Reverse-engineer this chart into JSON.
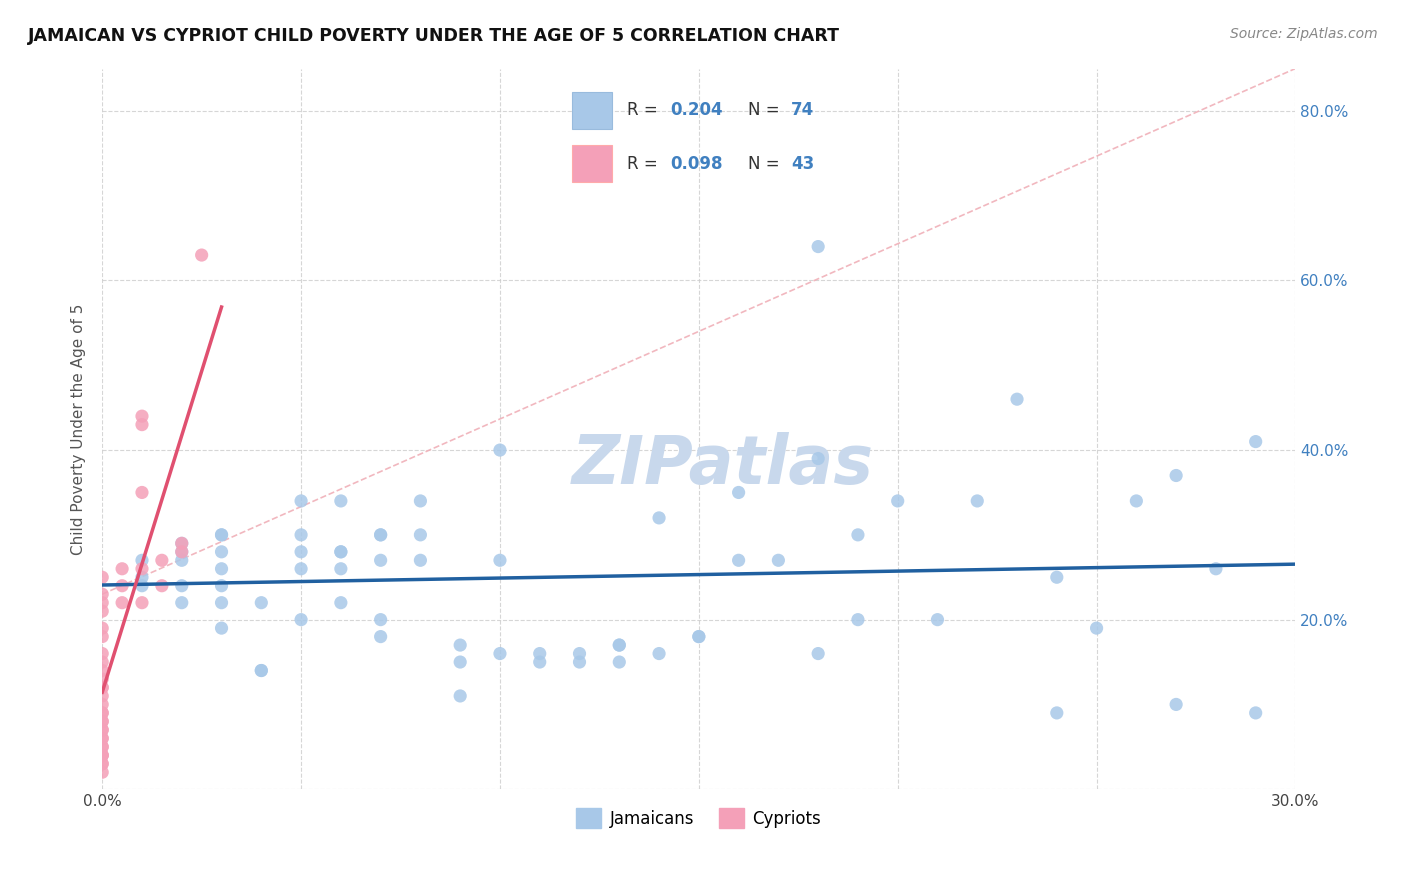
{
  "title": "JAMAICAN VS CYPRIOT CHILD POVERTY UNDER THE AGE OF 5 CORRELATION CHART",
  "source": "Source: ZipAtlas.com",
  "ylabel": "Child Poverty Under the Age of 5",
  "xlim": [
    0.0,
    0.3
  ],
  "ylim": [
    0.0,
    0.85
  ],
  "xticks": [
    0.0,
    0.05,
    0.1,
    0.15,
    0.2,
    0.25,
    0.3
  ],
  "xtick_labels": [
    "0.0%",
    "",
    "",
    "",
    "",
    "",
    "30.0%"
  ],
  "yticks": [
    0.0,
    0.2,
    0.4,
    0.6,
    0.8
  ],
  "ytick_labels_right": [
    "",
    "20.0%",
    "40.0%",
    "60.0%",
    "80.0%"
  ],
  "blue_R": "0.204",
  "blue_N": "74",
  "pink_R": "0.098",
  "pink_N": "43",
  "blue_color": "#A8C8E8",
  "pink_color": "#F4A0B8",
  "blue_line_color": "#2060A0",
  "pink_line_color": "#E05070",
  "ref_line_color": "#F0B0B8",
  "tick_label_color": "#4080C0",
  "watermark": "ZIPatlas",
  "watermark_color": "#C8D8EC",
  "legend_label_blue": "Jamaicans",
  "legend_label_pink": "Cypriots",
  "blue_x": [
    0.01,
    0.01,
    0.01,
    0.02,
    0.02,
    0.02,
    0.02,
    0.02,
    0.03,
    0.03,
    0.03,
    0.03,
    0.03,
    0.03,
    0.03,
    0.04,
    0.04,
    0.04,
    0.05,
    0.05,
    0.05,
    0.05,
    0.05,
    0.06,
    0.06,
    0.06,
    0.06,
    0.06,
    0.07,
    0.07,
    0.07,
    0.07,
    0.07,
    0.08,
    0.08,
    0.08,
    0.09,
    0.09,
    0.09,
    0.1,
    0.1,
    0.1,
    0.11,
    0.11,
    0.12,
    0.12,
    0.13,
    0.13,
    0.13,
    0.14,
    0.14,
    0.15,
    0.15,
    0.16,
    0.16,
    0.17,
    0.18,
    0.18,
    0.18,
    0.19,
    0.19,
    0.2,
    0.21,
    0.22,
    0.23,
    0.24,
    0.24,
    0.25,
    0.26,
    0.27,
    0.27,
    0.28,
    0.29,
    0.29
  ],
  "blue_y": [
    0.25,
    0.27,
    0.24,
    0.29,
    0.28,
    0.24,
    0.22,
    0.27,
    0.3,
    0.28,
    0.26,
    0.22,
    0.19,
    0.3,
    0.24,
    0.14,
    0.14,
    0.22,
    0.26,
    0.2,
    0.3,
    0.34,
    0.28,
    0.26,
    0.28,
    0.22,
    0.34,
    0.28,
    0.27,
    0.3,
    0.3,
    0.18,
    0.2,
    0.27,
    0.3,
    0.34,
    0.11,
    0.15,
    0.17,
    0.4,
    0.27,
    0.16,
    0.15,
    0.16,
    0.16,
    0.15,
    0.17,
    0.15,
    0.17,
    0.16,
    0.32,
    0.18,
    0.18,
    0.27,
    0.35,
    0.27,
    0.64,
    0.39,
    0.16,
    0.3,
    0.2,
    0.34,
    0.2,
    0.34,
    0.46,
    0.09,
    0.25,
    0.19,
    0.34,
    0.1,
    0.37,
    0.26,
    0.09,
    0.41
  ],
  "pink_x": [
    0.0,
    0.0,
    0.0,
    0.0,
    0.0,
    0.0,
    0.0,
    0.0,
    0.0,
    0.0,
    0.0,
    0.0,
    0.0,
    0.0,
    0.0,
    0.0,
    0.0,
    0.0,
    0.0,
    0.0,
    0.0,
    0.0,
    0.0,
    0.0,
    0.0,
    0.0,
    0.0,
    0.0,
    0.0,
    0.0,
    0.005,
    0.005,
    0.005,
    0.01,
    0.01,
    0.01,
    0.01,
    0.01,
    0.015,
    0.015,
    0.02,
    0.02,
    0.025
  ],
  "pink_y": [
    0.25,
    0.23,
    0.22,
    0.21,
    0.19,
    0.18,
    0.16,
    0.15,
    0.14,
    0.13,
    0.12,
    0.11,
    0.1,
    0.09,
    0.08,
    0.07,
    0.06,
    0.05,
    0.04,
    0.03,
    0.04,
    0.05,
    0.06,
    0.04,
    0.03,
    0.02,
    0.07,
    0.08,
    0.12,
    0.09,
    0.24,
    0.26,
    0.22,
    0.43,
    0.44,
    0.35,
    0.22,
    0.26,
    0.27,
    0.24,
    0.28,
    0.29,
    0.63
  ]
}
